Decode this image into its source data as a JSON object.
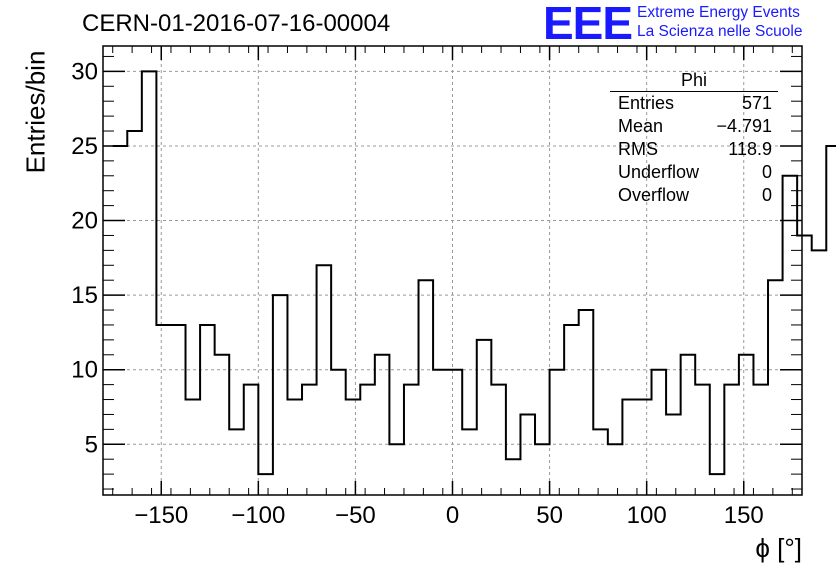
{
  "header": {
    "title": "CERN-01-2016-07-16-00004",
    "logo_mark": "EEE",
    "logo_line1": "Extreme Energy Events",
    "logo_line2": "La Scienza nelle Scuole"
  },
  "stats_box": {
    "title": "Phi",
    "rows": [
      {
        "label": "Entries",
        "value": "571"
      },
      {
        "label": "Mean",
        "value": "−4.791"
      },
      {
        "label": "RMS",
        "value": "118.9"
      },
      {
        "label": "Underflow",
        "value": "0"
      },
      {
        "label": "Overflow",
        "value": "0"
      }
    ]
  },
  "chart_data": {
    "type": "histogram",
    "xlabel": "ϕ [°]",
    "ylabel": "Entries/bin",
    "xlim": [
      -180,
      180
    ],
    "ylim": [
      1.6,
      31.7
    ],
    "bin_edges_start": -175,
    "bin_width": 7.5,
    "values": [
      25,
      26,
      30,
      13,
      13,
      8,
      13,
      11,
      6,
      9,
      3,
      15,
      8,
      9,
      17,
      10,
      8,
      9,
      11,
      5,
      9,
      16,
      10,
      10,
      6,
      12,
      9,
      4,
      7,
      5,
      10,
      13,
      14,
      6,
      5,
      8,
      8,
      10,
      7,
      11,
      9,
      3,
      9,
      11,
      9,
      16,
      23,
      19,
      18,
      25
    ],
    "x_ticks": [
      -150,
      -100,
      -50,
      0,
      50,
      100,
      150
    ],
    "x_tick_labels": [
      "−150",
      "−100",
      "−50",
      "0",
      "50",
      "100",
      "150"
    ],
    "y_ticks": [
      5,
      10,
      15,
      20,
      25,
      30
    ],
    "y_tick_labels": [
      "5",
      "10",
      "15",
      "20",
      "25",
      "30"
    ],
    "grid": true
  }
}
